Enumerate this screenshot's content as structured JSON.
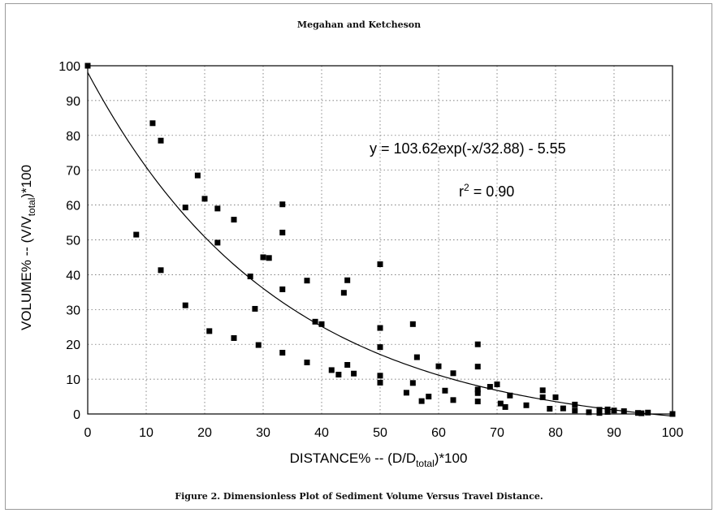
{
  "header": {
    "text": "Megahan and Ketcheson"
  },
  "caption": {
    "text": "Figure 2. Dimensionless Plot of Sediment Volume Versus Travel Distance."
  },
  "chart_data": {
    "type": "scatter",
    "title": "",
    "xlabel": {
      "main": "DISTANCE% -- (D/D",
      "sub": "total",
      "tail": ")*100"
    },
    "ylabel": {
      "main": "VOLUME% -- (V/V",
      "sub": "total",
      "tail": ")*100"
    },
    "xlim": [
      0,
      100
    ],
    "ylim": [
      0,
      100
    ],
    "x_ticks": [
      "0",
      "10",
      "20",
      "30",
      "40",
      "50",
      "60",
      "70",
      "80",
      "90",
      "100"
    ],
    "y_ticks": [
      "0",
      "10",
      "20",
      "30",
      "40",
      "50",
      "60",
      "70",
      "80",
      "90",
      "100"
    ],
    "grid": "dotted",
    "annotations": {
      "equation": "y = 103.62exp(-x/32.88) - 5.55",
      "r2_base": "r",
      "r2_sup": "2",
      "r2_tail": " = 0.90"
    },
    "fit": {
      "a": 103.62,
      "b": 32.88,
      "c": -5.55
    },
    "points": [
      [
        0,
        100
      ],
      [
        8.3,
        51.5
      ],
      [
        11.1,
        83.5
      ],
      [
        12.5,
        78.5
      ],
      [
        12.5,
        41.3
      ],
      [
        16.7,
        59.3
      ],
      [
        16.7,
        31.2
      ],
      [
        18.8,
        68.5
      ],
      [
        20,
        61.8
      ],
      [
        20.8,
        23.8
      ],
      [
        22.2,
        59
      ],
      [
        22.2,
        49.2
      ],
      [
        25,
        55.8
      ],
      [
        25,
        21.8
      ],
      [
        27.8,
        39.5
      ],
      [
        28.6,
        30.2
      ],
      [
        29.2,
        19.8
      ],
      [
        30,
        45
      ],
      [
        31,
        44.8
      ],
      [
        33.3,
        60.2
      ],
      [
        33.3,
        52.1
      ],
      [
        33.3,
        35.8
      ],
      [
        33.3,
        17.6
      ],
      [
        37.5,
        38.3
      ],
      [
        37.5,
        14.8
      ],
      [
        38.9,
        26.5
      ],
      [
        40,
        25.8
      ],
      [
        41.7,
        12.6
      ],
      [
        42.9,
        11.3
      ],
      [
        43.8,
        34.8
      ],
      [
        44.4,
        38.4
      ],
      [
        44.4,
        14.1
      ],
      [
        45.5,
        11.6
      ],
      [
        50,
        43
      ],
      [
        50,
        24.7
      ],
      [
        50,
        19.2
      ],
      [
        50,
        11
      ],
      [
        50,
        9
      ],
      [
        54.5,
        6.1
      ],
      [
        55.6,
        25.8
      ],
      [
        55.6,
        8.9
      ],
      [
        56.3,
        16.3
      ],
      [
        57.1,
        3.7
      ],
      [
        58.3,
        5
      ],
      [
        60,
        13.7
      ],
      [
        61.1,
        6.7
      ],
      [
        62.5,
        11.7
      ],
      [
        62.5,
        4
      ],
      [
        66.7,
        20
      ],
      [
        66.7,
        13.6
      ],
      [
        66.7,
        7
      ],
      [
        66.7,
        6
      ],
      [
        66.7,
        3.6
      ],
      [
        68.8,
        7.8
      ],
      [
        70,
        8.5
      ],
      [
        70.6,
        3
      ],
      [
        71.4,
        2
      ],
      [
        72.2,
        5.3
      ],
      [
        75,
        2.5
      ],
      [
        77.8,
        6.8
      ],
      [
        77.8,
        4.8
      ],
      [
        79,
        1.5
      ],
      [
        80,
        4.8
      ],
      [
        81.3,
        1.6
      ],
      [
        83.3,
        2.7
      ],
      [
        83.3,
        1
      ],
      [
        85.7,
        0.5
      ],
      [
        87.5,
        1.2
      ],
      [
        87.5,
        0.3
      ],
      [
        88.9,
        1.3
      ],
      [
        88.9,
        0.6
      ],
      [
        90,
        1
      ],
      [
        91.7,
        0.8
      ],
      [
        94.1,
        0.3
      ],
      [
        94.7,
        0.2
      ],
      [
        95.8,
        0.4
      ],
      [
        100,
        0
      ]
    ]
  }
}
